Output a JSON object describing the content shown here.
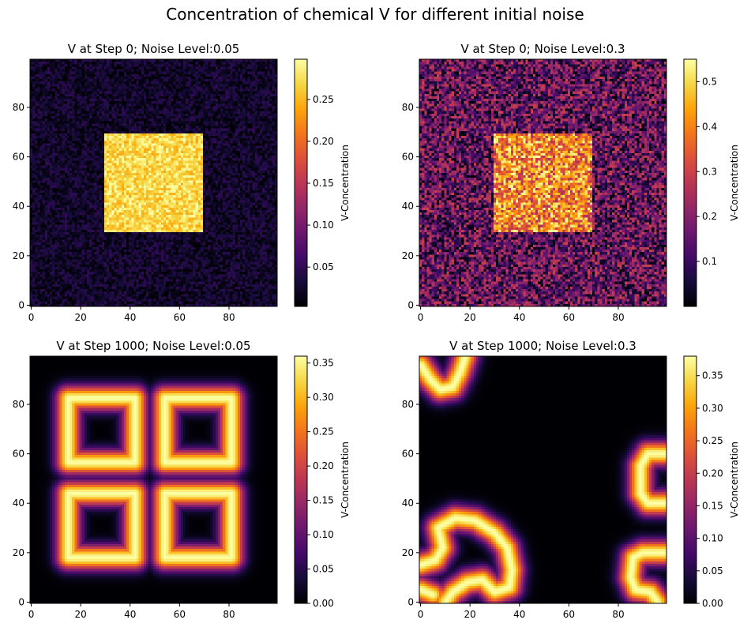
{
  "figure": {
    "suptitle": "Concentration of chemical V for different initial noise"
  },
  "chart_data": [
    {
      "type": "heatmap",
      "title": "V at Step 0; Noise Level:0.05",
      "colormap": "inferno",
      "grid": false,
      "xlim": [
        0,
        99
      ],
      "ylim": [
        0,
        99
      ],
      "xticks": [
        "0",
        "20",
        "40",
        "60",
        "80"
      ],
      "yticks": [
        "0",
        "20",
        "40",
        "60",
        "80"
      ],
      "field": {
        "kind": "noise_square",
        "base": 0.025,
        "base_noise": 0.025,
        "square": [
          30,
          70,
          30,
          70
        ],
        "square_value": 0.27,
        "square_noise": 0.03
      },
      "colorbar": {
        "label": "V-Concentration",
        "vmin": 0.003,
        "vmax": 0.298,
        "ticks": [
          {
            "v": 0.05,
            "t": "0.05"
          },
          {
            "v": 0.1,
            "t": "0.10"
          },
          {
            "v": 0.15,
            "t": "0.15"
          },
          {
            "v": 0.2,
            "t": "0.20"
          },
          {
            "v": 0.25,
            "t": "0.25"
          }
        ]
      }
    },
    {
      "type": "heatmap",
      "title": "V at Step 0; Noise Level:0.3",
      "colormap": "inferno",
      "grid": false,
      "xlim": [
        0,
        99
      ],
      "ylim": [
        0,
        99
      ],
      "xticks": [
        "0",
        "20",
        "40",
        "60",
        "80"
      ],
      "yticks": [
        "0",
        "20",
        "40",
        "60",
        "80"
      ],
      "field": {
        "kind": "noise_square",
        "base": 0.15,
        "base_noise": 0.15,
        "square": [
          30,
          70,
          30,
          70
        ],
        "square_value": 0.4,
        "square_noise": 0.15
      },
      "colorbar": {
        "label": "V-Concentration",
        "vmin": 0.0,
        "vmax": 0.55,
        "ticks": [
          {
            "v": 0.1,
            "t": "0.1"
          },
          {
            "v": 0.2,
            "t": "0.2"
          },
          {
            "v": 0.3,
            "t": "0.3"
          },
          {
            "v": 0.4,
            "t": "0.4"
          },
          {
            "v": 0.5,
            "t": "0.5"
          }
        ]
      }
    },
    {
      "type": "heatmap",
      "title": "V at Step 1000; Noise Level:0.05",
      "colormap": "inferno",
      "grid": false,
      "xlim": [
        0,
        99
      ],
      "ylim": [
        0,
        99
      ],
      "xticks": [
        "0",
        "20",
        "40",
        "60",
        "80"
      ],
      "yticks": [
        "0",
        "20",
        "40",
        "60",
        "80"
      ],
      "field": {
        "kind": "rings",
        "peak": 0.36,
        "width": 3.5,
        "rings": [
          {
            "cx": 28.5,
            "cy": 69.5,
            "hw": 13.5,
            "hh": 13
          },
          {
            "cx": 67.5,
            "cy": 69.5,
            "hw": 13.5,
            "hh": 13
          },
          {
            "cx": 28.5,
            "cy": 31,
            "hw": 13.5,
            "hh": 13
          },
          {
            "cx": 67.5,
            "cy": 31,
            "hw": 13.5,
            "hh": 13
          }
        ],
        "paths": []
      },
      "colorbar": {
        "label": "V-Concentration",
        "vmin": 0.0,
        "vmax": 0.36,
        "ticks": [
          {
            "v": 0.0,
            "t": "0.00"
          },
          {
            "v": 0.05,
            "t": "0.05"
          },
          {
            "v": 0.1,
            "t": "0.10"
          },
          {
            "v": 0.15,
            "t": "0.15"
          },
          {
            "v": 0.2,
            "t": "0.20"
          },
          {
            "v": 0.25,
            "t": "0.25"
          },
          {
            "v": 0.3,
            "t": "0.30"
          },
          {
            "v": 0.35,
            "t": "0.35"
          }
        ]
      }
    },
    {
      "type": "heatmap",
      "title": "V at Step 1000; Noise Level:0.3",
      "colormap": "inferno",
      "grid": false,
      "xlim": [
        0,
        99
      ],
      "ylim": [
        0,
        99
      ],
      "xticks": [
        "0",
        "20",
        "40",
        "60",
        "80"
      ],
      "yticks": [
        "0",
        "20",
        "40",
        "60",
        "80"
      ],
      "field": {
        "kind": "rings",
        "peak": 0.38,
        "width": 3.5,
        "rings": [],
        "paths": [
          [
            [
              0,
              96
            ],
            [
              4,
              90
            ],
            [
              8,
              86
            ],
            [
              13,
              87
            ],
            [
              16,
              93
            ],
            [
              18,
              99
            ]
          ],
          [
            [
              99,
              60
            ],
            [
              92,
              60
            ],
            [
              89,
              55
            ],
            [
              89,
              44
            ],
            [
              92,
              40
            ],
            [
              99,
              40
            ]
          ],
          [
            [
              99,
              20
            ],
            [
              90,
              20
            ],
            [
              86,
              18
            ],
            [
              85,
              10
            ],
            [
              87,
              5
            ],
            [
              93,
              4
            ],
            [
              96,
              0
            ]
          ],
          [
            [
              0,
              15
            ],
            [
              6,
              17
            ],
            [
              9,
              22
            ],
            [
              7,
              30
            ],
            [
              14,
              34
            ],
            [
              22,
              33
            ],
            [
              30,
              28
            ],
            [
              35,
              22
            ],
            [
              37,
              13
            ],
            [
              36,
              6
            ],
            [
              30,
              4
            ],
            [
              25,
              9
            ],
            [
              19,
              8
            ],
            [
              13,
              4
            ],
            [
              10,
              0
            ]
          ],
          [
            [
              0,
              5
            ],
            [
              5,
              3
            ]
          ]
        ]
      },
      "colorbar": {
        "label": "V-Concentration",
        "vmin": 0.0,
        "vmax": 0.38,
        "ticks": [
          {
            "v": 0.0,
            "t": "0.00"
          },
          {
            "v": 0.05,
            "t": "0.05"
          },
          {
            "v": 0.1,
            "t": "0.10"
          },
          {
            "v": 0.15,
            "t": "0.15"
          },
          {
            "v": 0.2,
            "t": "0.20"
          },
          {
            "v": 0.25,
            "t": "0.25"
          },
          {
            "v": 0.3,
            "t": "0.30"
          },
          {
            "v": 0.35,
            "t": "0.35"
          }
        ]
      }
    }
  ]
}
